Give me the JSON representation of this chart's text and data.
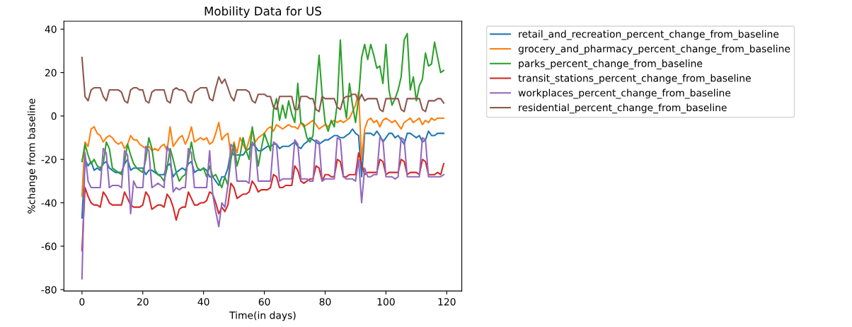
{
  "chart_data": {
    "type": "line",
    "title": "Mobility Data for US",
    "xlabel": "Time(in days)",
    "ylabel": "%change from baseline",
    "x": [
      0,
      1,
      2,
      3,
      4,
      5,
      6,
      7,
      8,
      9,
      10,
      11,
      12,
      13,
      14,
      15,
      16,
      17,
      18,
      19,
      20,
      21,
      22,
      23,
      24,
      25,
      26,
      27,
      28,
      29,
      30,
      31,
      32,
      33,
      34,
      35,
      36,
      37,
      38,
      39,
      40,
      41,
      42,
      43,
      44,
      45,
      46,
      47,
      48,
      49,
      50,
      51,
      52,
      53,
      54,
      55,
      56,
      57,
      58,
      59,
      60,
      61,
      62,
      63,
      64,
      65,
      66,
      67,
      68,
      69,
      70,
      71,
      72,
      73,
      74,
      75,
      76,
      77,
      78,
      79,
      80,
      81,
      82,
      83,
      84,
      85,
      86,
      87,
      88,
      89,
      90,
      91,
      92,
      93,
      94,
      95,
      96,
      97,
      98,
      99,
      100,
      101,
      102,
      103,
      104,
      105,
      106,
      107,
      108,
      109,
      110,
      111,
      112,
      113,
      114,
      115,
      116,
      117,
      118,
      119
    ],
    "xlim": [
      -5.95,
      124.95
    ],
    "ylim": [
      -80.65,
      43.65
    ],
    "xticks": [
      0,
      20,
      40,
      60,
      80,
      100,
      120
    ],
    "yticks": [
      -80,
      -60,
      -40,
      -20,
      0,
      20,
      40
    ],
    "legend": "right",
    "grid": false,
    "series": [
      {
        "name": "retail_and_recreation_percent_change_from_baseline",
        "color": "#1f77b4",
        "values": [
          -47,
          -20,
          -23,
          -21,
          -25,
          -24,
          -25,
          -22,
          -21,
          -24,
          -25,
          -26,
          -26,
          -26,
          -22,
          -20,
          -25,
          -24,
          -24,
          -24,
          -24,
          -27,
          -25,
          -25,
          -26,
          -27,
          -27,
          -27,
          -23,
          -22,
          -28,
          -26,
          -25,
          -24,
          -25,
          -22,
          -21,
          -26,
          -25,
          -25,
          -24,
          -25,
          -28,
          -28,
          -30,
          -32,
          -28,
          -28,
          -24,
          -16,
          -18,
          -18,
          -18,
          -18,
          -16,
          -15,
          -13,
          -14,
          -16,
          -16,
          -15,
          -14,
          -14,
          -13,
          -13,
          -15,
          -14,
          -14,
          -14,
          -13,
          -12,
          -14,
          -15,
          -13,
          -12,
          -10,
          -11,
          -12,
          -13,
          -12,
          -11,
          -11,
          -10,
          -9,
          -9,
          -10,
          -10,
          -9,
          -8,
          -6,
          -8,
          -9,
          -28,
          -8,
          -8,
          -8,
          -9,
          -7,
          -9,
          -12,
          -10,
          -8,
          -8,
          -10,
          -9,
          -11,
          -13,
          -8,
          -8,
          -9,
          -10,
          -9,
          -12,
          -11,
          -7,
          -9,
          -9,
          -8,
          -8,
          -8
        ]
      },
      {
        "name": "grocery_and_pharmacy_percent_change_from_baseline",
        "color": "#ff7f0e",
        "values": [
          -37,
          -12,
          -14,
          -6,
          -5,
          -8,
          -9,
          -12,
          -10,
          -9,
          -10,
          -12,
          -13,
          -12,
          -15,
          -13,
          -9,
          -11,
          -11,
          -13,
          -14,
          -15,
          -14,
          -16,
          -15,
          -16,
          -14,
          -13,
          -16,
          -5,
          -14,
          -12,
          -10,
          -9,
          -13,
          -10,
          -5,
          -12,
          -11,
          -10,
          -11,
          -10,
          -13,
          -12,
          -8,
          -3,
          -11,
          -9,
          -8,
          -18,
          -12,
          -17,
          -10,
          -13,
          -16,
          -11,
          -6,
          -12,
          -10,
          -9,
          -8,
          -6,
          -5,
          -7,
          -4,
          -5,
          -6,
          -5,
          -4,
          -5,
          -5,
          -6,
          -3,
          -5,
          -4,
          -3,
          -2,
          -4,
          -6,
          -5,
          -4,
          -5,
          -3,
          -2,
          -3,
          -2,
          -3,
          -2,
          -1,
          2,
          5,
          11,
          -20,
          -6,
          -2,
          -1,
          -3,
          -2,
          -5,
          -2,
          -1,
          -2,
          -3,
          -2,
          -4,
          -6,
          -3,
          -2,
          -1,
          -3,
          -2,
          -1,
          -4,
          -2,
          -3,
          -1,
          -2,
          -1,
          -1,
          -1
        ]
      },
      {
        "name": "parks_percent_change_from_baseline",
        "color": "#2ca02c",
        "values": [
          -21,
          -13,
          -18,
          -22,
          -20,
          -23,
          -24,
          -22,
          -12,
          -15,
          -24,
          -25,
          -26,
          -27,
          -21,
          -13,
          -18,
          -22,
          -24,
          -25,
          -26,
          -20,
          -10,
          -15,
          -25,
          -27,
          -28,
          -30,
          -24,
          -15,
          -20,
          -26,
          -30,
          -28,
          -27,
          -20,
          -12,
          -20,
          -24,
          -25,
          -24,
          -28,
          -23,
          -28,
          -27,
          -30,
          -33,
          -28,
          -32,
          -20,
          -13,
          -23,
          -18,
          -10,
          -16,
          -20,
          -5,
          -14,
          -23,
          -15,
          -8,
          -12,
          -16,
          3,
          8,
          -2,
          5,
          -1,
          7,
          1,
          -3,
          15,
          -3,
          -4,
          -10,
          -12,
          -9,
          11,
          28,
          10,
          -3,
          -7,
          -2,
          -5,
          6,
          35,
          8,
          -1,
          15,
          5,
          -3,
          8,
          27,
          33,
          26,
          33,
          28,
          22,
          23,
          15,
          33,
          12,
          5,
          8,
          12,
          18,
          35,
          38,
          12,
          18,
          7,
          14,
          17,
          29,
          23,
          24,
          34,
          27,
          20,
          21
        ]
      },
      {
        "name": "transit_stations_percent_change_from_baseline",
        "color": "#d62728",
        "values": [
          -62,
          -33,
          -37,
          -40,
          -41,
          -41,
          -42,
          -35,
          -37,
          -40,
          -41,
          -41,
          -41,
          -41,
          -35,
          -38,
          -41,
          -42,
          -42,
          -42,
          -41,
          -35,
          -37,
          -43,
          -42,
          -41,
          -41,
          -42,
          -36,
          -38,
          -42,
          -48,
          -43,
          -42,
          -42,
          -35,
          -38,
          -41,
          -41,
          -40,
          -40,
          -39,
          -35,
          -36,
          -40,
          -45,
          -42,
          -44,
          -41,
          -31,
          -33,
          -38,
          -37,
          -36,
          -36,
          -35,
          -30,
          -32,
          -35,
          -34,
          -34,
          -34,
          -33,
          -27,
          -28,
          -33,
          -33,
          -32,
          -32,
          -32,
          -23,
          -25,
          -30,
          -31,
          -30,
          -29,
          -29,
          -23,
          -24,
          -30,
          -27,
          -27,
          -28,
          -28,
          -20,
          -21,
          -28,
          -28,
          -27,
          -27,
          -27,
          -17,
          -22,
          -27,
          -26,
          -26,
          -26,
          -26,
          -20,
          -21,
          -27,
          -26,
          -26,
          -26,
          -26,
          -20,
          -21,
          -27,
          -26,
          -26,
          -26,
          -27,
          -20,
          -21,
          -27,
          -27,
          -27,
          -26,
          -27,
          -22
        ]
      },
      {
        "name": "workplaces_percent_change_from_baseline",
        "color": "#9467bd",
        "values": [
          -75,
          -17,
          -30,
          -33,
          -33,
          -33,
          -33,
          -15,
          -17,
          -33,
          -32,
          -32,
          -32,
          -33,
          -16,
          -18,
          -45,
          -30,
          -33,
          -33,
          -33,
          -14,
          -16,
          -33,
          -32,
          -31,
          -32,
          -33,
          -14,
          -17,
          -35,
          -33,
          -34,
          -33,
          -33,
          -15,
          -17,
          -33,
          -33,
          -33,
          -33,
          -33,
          -16,
          -36,
          -44,
          -51,
          -40,
          -42,
          -32,
          -13,
          -15,
          -30,
          -30,
          -30,
          -30,
          -31,
          -12,
          -14,
          -30,
          -30,
          -30,
          -30,
          -30,
          -12,
          -13,
          -30,
          -29,
          -29,
          -29,
          -29,
          -11,
          -13,
          -29,
          -29,
          -29,
          -30,
          -30,
          -11,
          -12,
          -30,
          -29,
          -29,
          -29,
          -29,
          -10,
          -11,
          -28,
          -29,
          -29,
          -29,
          -30,
          -20,
          -40,
          -24,
          -28,
          -28,
          -27,
          -27,
          -10,
          -11,
          -28,
          -28,
          -28,
          -29,
          -28,
          -10,
          -11,
          -28,
          -28,
          -28,
          -28,
          -28,
          -10,
          -11,
          -28,
          -28,
          -28,
          -28,
          -28,
          -27
        ]
      },
      {
        "name": "residential_percent_change_from_baseline",
        "color": "#8c564b",
        "values": [
          27,
          9,
          7,
          12,
          13,
          13,
          13,
          9,
          7,
          12,
          12,
          12,
          12,
          11,
          7,
          6,
          12,
          13,
          13,
          12,
          12,
          7,
          6,
          11,
          12,
          12,
          12,
          12,
          7,
          6,
          12,
          13,
          12,
          12,
          11,
          7,
          6,
          11,
          12,
          13,
          13,
          13,
          8,
          7,
          13,
          18,
          15,
          17,
          13,
          9,
          7,
          12,
          12,
          12,
          12,
          11,
          7,
          6,
          10,
          10,
          10,
          9,
          9,
          4,
          3,
          9,
          9,
          9,
          9,
          9,
          3,
          3,
          9,
          9,
          9,
          8,
          8,
          3,
          2,
          9,
          8,
          8,
          8,
          8,
          4,
          3,
          8,
          9,
          9,
          10,
          10,
          7,
          10,
          7,
          8,
          8,
          8,
          8,
          3,
          2,
          8,
          8,
          8,
          8,
          8,
          3,
          2,
          8,
          8,
          8,
          8,
          8,
          3,
          2,
          7,
          7,
          7,
          8,
          8,
          6
        ]
      }
    ]
  }
}
